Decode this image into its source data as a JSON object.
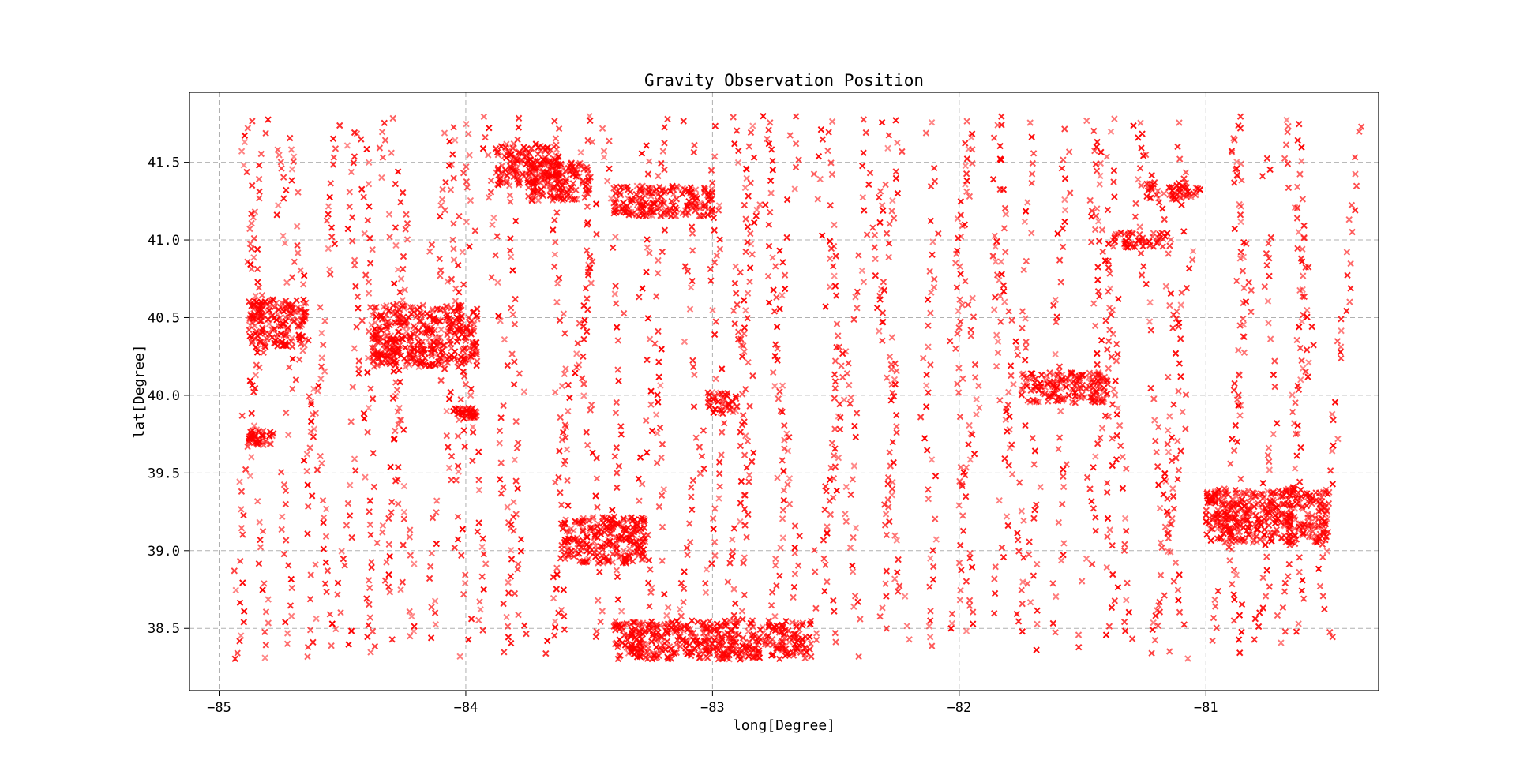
{
  "figure": {
    "background": "#ffffff"
  },
  "chart_data": {
    "type": "scatter",
    "title": "Gravity Observation Position",
    "xlabel": "long[Degree]",
    "ylabel": "lat[Degree]",
    "xlim": [
      -85.12,
      -80.3
    ],
    "ylim": [
      38.1,
      41.95
    ],
    "xticks": [
      -85,
      -84,
      -83,
      -82,
      -81
    ],
    "xtick_labels": [
      "−85",
      "−84",
      "−83",
      "−82",
      "−81"
    ],
    "yticks": [
      38.5,
      39.0,
      39.5,
      40.0,
      40.5,
      41.0,
      41.5
    ],
    "ytick_labels": [
      "38.5",
      "39.0",
      "39.5",
      "40.0",
      "40.5",
      "41.0",
      "41.5"
    ],
    "grid": true,
    "marker": "x",
    "color": "#ff0000",
    "point_coverage": {
      "lon_range": [
        -84.92,
        -80.5
      ],
      "lat_range": [
        38.3,
        41.8
      ]
    },
    "dense_clusters": [
      {
        "lon": [
          -83.88,
          -83.62
        ],
        "lat": [
          41.35,
          41.62
        ]
      },
      {
        "lon": [
          -83.75,
          -83.5
        ],
        "lat": [
          41.25,
          41.5
        ]
      },
      {
        "lon": [
          -83.4,
          -83.0
        ],
        "lat": [
          41.15,
          41.35
        ]
      },
      {
        "lon": [
          -81.38,
          -81.15
        ],
        "lat": [
          40.95,
          41.05
        ]
      },
      {
        "lon": [
          -81.25,
          -81.02
        ],
        "lat": [
          41.26,
          41.37
        ]
      },
      {
        "lon": [
          -84.88,
          -84.65
        ],
        "lat": [
          40.3,
          40.62
        ]
      },
      {
        "lon": [
          -84.38,
          -83.95
        ],
        "lat": [
          40.18,
          40.58
        ]
      },
      {
        "lon": [
          -83.02,
          -82.9
        ],
        "lat": [
          39.88,
          40.02
        ]
      },
      {
        "lon": [
          -84.05,
          -83.95
        ],
        "lat": [
          39.85,
          39.92
        ]
      },
      {
        "lon": [
          -84.88,
          -84.78
        ],
        "lat": [
          39.68,
          39.78
        ]
      },
      {
        "lon": [
          -83.6,
          -83.26
        ],
        "lat": [
          38.92,
          39.22
        ]
      },
      {
        "lon": [
          -81.75,
          -81.4
        ],
        "lat": [
          39.95,
          40.15
        ]
      },
      {
        "lon": [
          -81.0,
          -80.5
        ],
        "lat": [
          39.05,
          39.4
        ]
      },
      {
        "lon": [
          -83.4,
          -82.6
        ],
        "lat": [
          38.3,
          38.55
        ]
      }
    ]
  }
}
